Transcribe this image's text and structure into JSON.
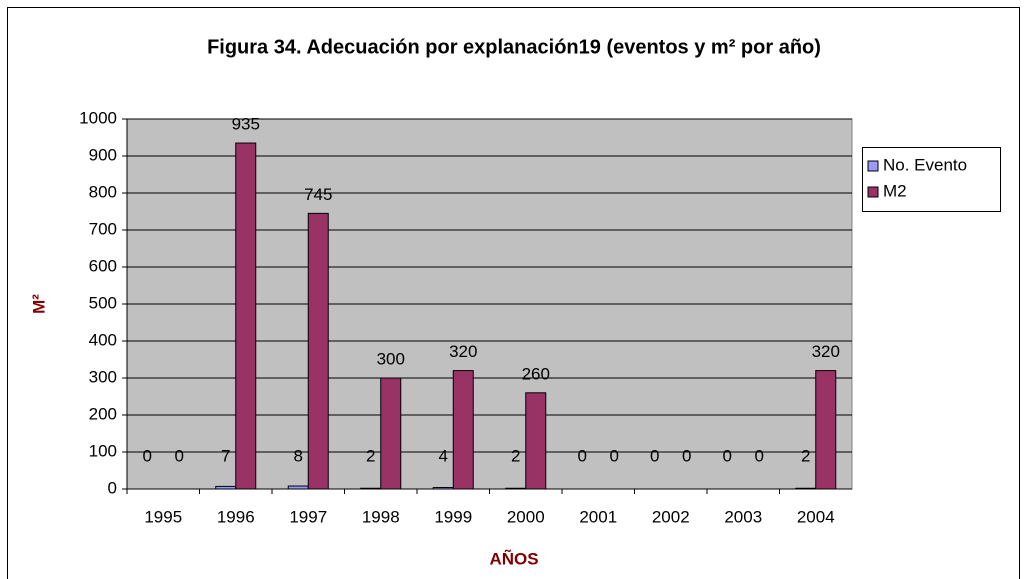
{
  "chart_data": {
    "type": "bar",
    "title": "Figura 34. Adecuación por explanación19 (eventos  y m² por año)",
    "x_label": "AÑOS",
    "y_label": "M²",
    "categories": [
      "1995",
      "1996",
      "1997",
      "1998",
      "1999",
      "2000",
      "2001",
      "2002",
      "2003",
      "2004"
    ],
    "series": [
      {
        "name": "No. Evento",
        "color": "#9999ff",
        "values": [
          0,
          7,
          8,
          2,
          4,
          2,
          0,
          0,
          0,
          2
        ]
      },
      {
        "name": "M2",
        "color": "#993366",
        "values": [
          0,
          935,
          745,
          300,
          320,
          260,
          0,
          0,
          0,
          320
        ]
      }
    ],
    "ylim": [
      0,
      1000
    ],
    "yticks": [
      0,
      100,
      200,
      300,
      400,
      500,
      600,
      700,
      800,
      900,
      1000
    ],
    "grid": true,
    "legend": "right",
    "plot_background": "#c0c0c0"
  }
}
